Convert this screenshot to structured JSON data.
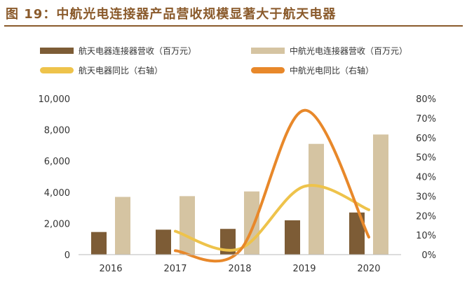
{
  "title": "图 19：中航光电连接器产品营收规模显著大于航天电器",
  "chart_data": {
    "type": "bar",
    "categories": [
      "2016",
      "2017",
      "2018",
      "2019",
      "2020"
    ],
    "series": [
      {
        "name": "航天电器连接器营收（百万元）",
        "type": "bar",
        "axis": "left",
        "color": "#7d5c36",
        "values": [
          1450,
          1600,
          1650,
          2200,
          2700
        ]
      },
      {
        "name": "中航光电连接器营收（百万元）",
        "type": "bar",
        "axis": "left",
        "color": "#d5c4a2",
        "values": [
          3700,
          3750,
          4050,
          7100,
          7700
        ]
      },
      {
        "name": "航天电器同比（右轴）",
        "type": "line",
        "axis": "right",
        "color": "#eec34b",
        "values": [
          null,
          12,
          3,
          35,
          23
        ]
      },
      {
        "name": "中航光电同比（右轴）",
        "type": "line",
        "axis": "right",
        "color": "#e8882a",
        "values": [
          null,
          2,
          2,
          74,
          9
        ]
      }
    ],
    "y_left": {
      "min": 0,
      "max": 10000,
      "ticks": [
        "0",
        "2,000",
        "4,000",
        "6,000",
        "8,000",
        "10,000"
      ]
    },
    "y_right": {
      "min": 0,
      "max": 80,
      "ticks": [
        "0%",
        "10%",
        "20%",
        "30%",
        "40%",
        "50%",
        "60%",
        "70%",
        "80%"
      ]
    },
    "grid": false,
    "legend_position": "top"
  }
}
